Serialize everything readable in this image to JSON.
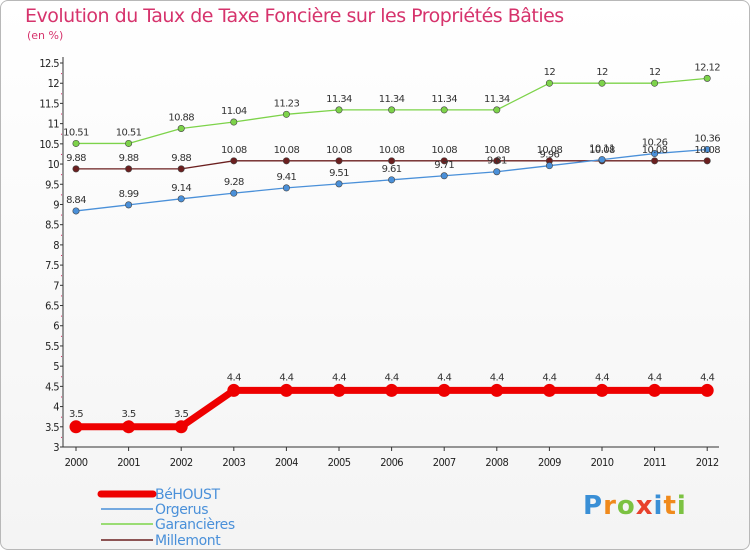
{
  "chart_data": {
    "type": "line",
    "title": "Evolution du Taux de Taxe Foncière sur les Propriétés Bâties",
    "ylabel": "(en %)",
    "xlabel": "",
    "ylim": [
      3,
      12.5
    ],
    "yticks": [
      "3",
      "3.5",
      "4",
      "4.5",
      "5",
      "5.5",
      "6",
      "6.5",
      "7",
      "7.5",
      "8",
      "8.5",
      "9",
      "9.5",
      "10",
      "10.5",
      "11",
      "11.5",
      "12",
      "12.5"
    ],
    "x": [
      "2000",
      "2001",
      "2002",
      "2003",
      "2004",
      "2005",
      "2006",
      "2007",
      "2008",
      "2009",
      "2010",
      "2011",
      "2012"
    ],
    "grid": false,
    "legend_position": "bottom-left",
    "series": [
      {
        "name": "BéHOUST",
        "color": "#ee0000",
        "values": [
          3.5,
          3.5,
          3.5,
          4.4,
          4.4,
          4.4,
          4.4,
          4.4,
          4.4,
          4.4,
          4.4,
          4.4,
          4.4
        ],
        "labels": [
          "3.5",
          "3.5",
          "3.5",
          "4.4",
          "4.4",
          "4.4",
          "4.4",
          "4.4",
          "4.4",
          "4.4",
          "4.4",
          "4.4",
          "4.4"
        ]
      },
      {
        "name": "Orgerus",
        "color": "#4a90d9",
        "values": [
          8.84,
          8.99,
          9.14,
          9.28,
          9.41,
          9.51,
          9.61,
          9.71,
          9.81,
          9.96,
          10.11,
          10.26,
          10.36
        ],
        "labels": [
          "8.84",
          "8.99",
          "9.14",
          "9.28",
          "9.41",
          "9.51",
          "9.61",
          "9.71",
          "9.81",
          "9.96",
          "10.11",
          "10.26",
          "10.36"
        ]
      },
      {
        "name": "Garancières",
        "color": "#7dd34a",
        "values": [
          10.51,
          10.51,
          10.88,
          11.04,
          11.23,
          11.34,
          11.34,
          11.34,
          11.34,
          12,
          12,
          12,
          12.12
        ],
        "labels": [
          "10.51",
          "10.51",
          "10.88",
          "11.04",
          "11.23",
          "11.34",
          "11.34",
          "11.34",
          "11.34",
          "12",
          "12",
          "12",
          "12.12"
        ]
      },
      {
        "name": "Millemont",
        "color": "#6b1f1f",
        "values": [
          9.88,
          9.88,
          9.88,
          10.08,
          10.08,
          10.08,
          10.08,
          10.08,
          10.08,
          10.08,
          10.08,
          10.08,
          10.08
        ],
        "labels": [
          "9.88",
          "9.88",
          "9.88",
          "10.08",
          "10.08",
          "10.08",
          "10.08",
          "10.08",
          "10.08",
          "10.08",
          "10.08",
          "10.08",
          "10.08"
        ]
      }
    ]
  },
  "branding": {
    "logo_letters": [
      "P",
      "r",
      "o",
      "x",
      "i",
      "t",
      "i"
    ],
    "logo_colors": [
      "#3a8fd6",
      "#f08a1c",
      "#7cc242",
      "#e8412c",
      "#3a8fd6",
      "#f08a1c",
      "#7cc242"
    ]
  }
}
